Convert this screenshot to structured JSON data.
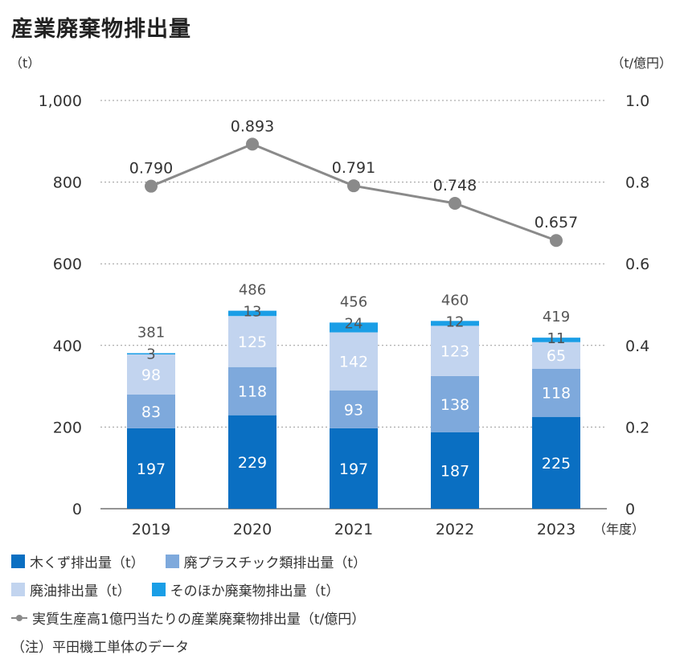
{
  "title": "産業廃棄物排出量",
  "chart_data": {
    "type": "bar",
    "stacked": true,
    "categories": [
      "2019",
      "2020",
      "2021",
      "2022",
      "2023"
    ],
    "x_unit": "（年度）",
    "y_left": {
      "unit": "（t）",
      "ylim": [
        0,
        1000
      ],
      "ticks": [
        "0",
        "200",
        "400",
        "600",
        "800",
        "1,000"
      ]
    },
    "y_right": {
      "unit": "（t/億円）",
      "ylim": [
        0,
        1.0
      ],
      "ticks": [
        "0",
        "0.2",
        "0.4",
        "0.6",
        "0.8",
        "1.0"
      ]
    },
    "grid": true,
    "series": [
      {
        "name": "木くず排出量（t）",
        "color": "#0a6fc2",
        "values": [
          197,
          229,
          197,
          187,
          225
        ]
      },
      {
        "name": "廃プラスチック類排出量（t）",
        "color": "#7ea9dc",
        "values": [
          83,
          118,
          93,
          138,
          118
        ]
      },
      {
        "name": "廃油排出量（t）",
        "color": "#c2d4ef",
        "values": [
          98,
          125,
          142,
          123,
          65
        ]
      },
      {
        "name": "そのほか廃棄物排出量（t）",
        "color": "#1a9ee6",
        "values": [
          3,
          13,
          24,
          12,
          11
        ]
      }
    ],
    "totals": [
      381,
      486,
      456,
      460,
      419
    ],
    "line": {
      "name": "実質生産高1億円当たりの産業廃棄物排出量（t/億円）",
      "axis": "right",
      "color": "#8a8a8a",
      "values": [
        0.79,
        0.893,
        0.791,
        0.748,
        0.657
      ],
      "labels": [
        "0.790",
        "0.893",
        "0.791",
        "0.748",
        "0.657"
      ]
    }
  },
  "note": "（注）平田機工単体のデータ"
}
